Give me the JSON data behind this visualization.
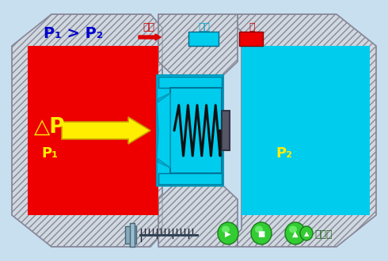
{
  "bg_color": "#c8dff0",
  "title_text": "P₁ > P₂",
  "title_color": "#0000cc",
  "legend_label_kong": "孔隙",
  "legend_label_piston": "活塞",
  "legend_label_oil": "油",
  "red_fill": "#ee0000",
  "cyan_fill": "#00ccee",
  "cyan_dark": "#0099bb",
  "hatch_fill": "#d0d8e0",
  "hatch_edge": "#888899",
  "spring_color": "#111111",
  "arrow_fill": "#ffee00",
  "arrow_edge": "#cc9900",
  "yellow_text": "#ffee00",
  "p1_label": "△P\nP₁",
  "p2_label": "P₂",
  "delta_label": "△P",
  "p1_only": "P₁",
  "rod_color": "#555566",
  "rod_edge": "#333344",
  "bottom_text": "返回上",
  "legend_arrow_color": "#dd0000",
  "legend_cyan": "#00ccee",
  "legend_red": "#ee0000"
}
